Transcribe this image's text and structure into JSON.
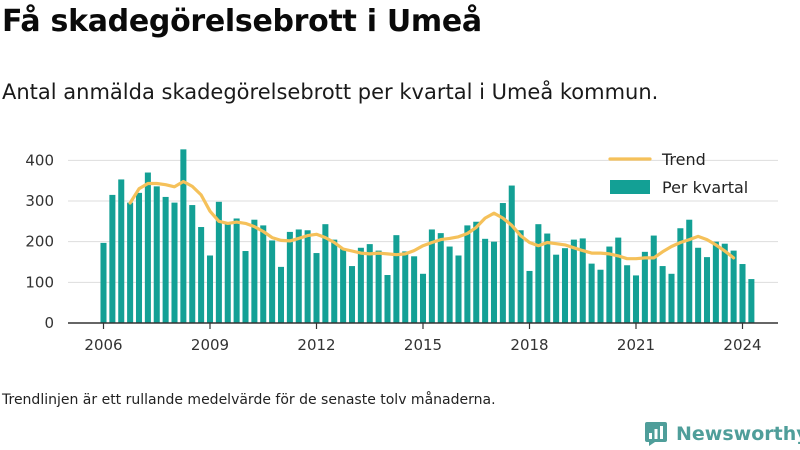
{
  "title": "Få skadegörelsebrott i Umeå",
  "subtitle": "Antal anmälda skadegörelsebrott per kvartal i Umeå kommun.",
  "note": "Trendlinjen är ett rullande medelvärde för de senaste tolv månaderna.",
  "brand": {
    "name": "Newsworthy",
    "icon": "newsworthy-logo-icon",
    "color": "#4f9e9a"
  },
  "colors": {
    "bars": "#13a095",
    "trend": "#f5c15a",
    "grid": "#dddddd",
    "axis": "#333333"
  },
  "chart_data": {
    "type": "bar",
    "x_start": 2006,
    "x_step": 0.25,
    "xticks": [
      "2006",
      "2009",
      "2012",
      "2015",
      "2018",
      "2021",
      "2024"
    ],
    "xlim": [
      2005,
      2025
    ],
    "ylim": [
      0,
      450
    ],
    "yticks": [
      "0",
      "100",
      "200",
      "300",
      "400"
    ],
    "grid": true,
    "legend_position": "top-right",
    "series": [
      {
        "name": "Per kvartal",
        "type": "bar",
        "values": [
          197,
          315,
          353,
          296,
          320,
          370,
          336,
          310,
          296,
          427,
          290,
          236,
          166,
          298,
          248,
          257,
          177,
          254,
          240,
          203,
          138,
          224,
          230,
          228,
          172,
          243,
          205,
          183,
          140,
          185,
          194,
          178,
          118,
          216,
          176,
          164,
          121,
          230,
          221,
          188,
          166,
          240,
          249,
          207,
          200,
          295,
          338,
          228,
          128,
          243,
          220,
          168,
          184,
          205,
          208,
          146,
          131,
          188,
          210,
          142,
          117,
          175,
          215,
          140,
          121,
          233,
          254,
          185,
          162,
          200,
          195,
          178,
          145,
          108
        ]
      },
      {
        "name": "Trend",
        "type": "line",
        "values": [
          295,
          330,
          343,
          343,
          340,
          335,
          348,
          336,
          315,
          275,
          250,
          245,
          248,
          245,
          237,
          225,
          210,
          203,
          202,
          208,
          215,
          218,
          210,
          198,
          182,
          177,
          172,
          170,
          172,
          170,
          168,
          170,
          178,
          190,
          198,
          205,
          208,
          212,
          220,
          235,
          258,
          270,
          258,
          240,
          215,
          198,
          190,
          198,
          195,
          192,
          185,
          178,
          172,
          172,
          170,
          165,
          158,
          158,
          160,
          160,
          175,
          188,
          198,
          205,
          213,
          205,
          192,
          177,
          160
        ]
      }
    ]
  }
}
